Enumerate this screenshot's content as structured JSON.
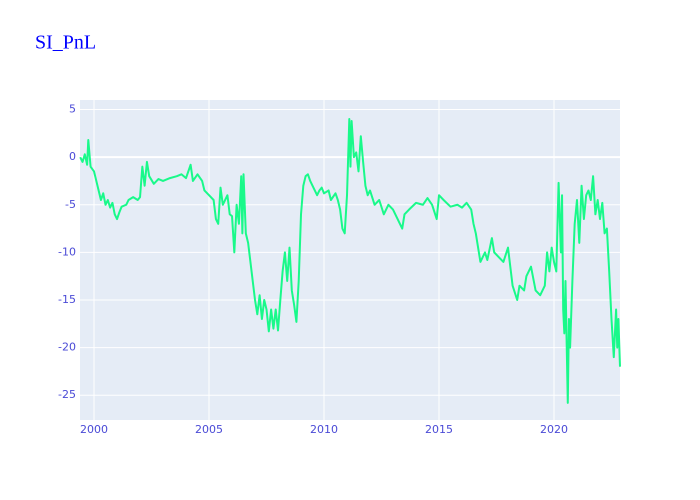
{
  "chart_data": {
    "type": "line",
    "title": "SI_PnL",
    "x": [
      1999.4,
      1999.5,
      1999.6,
      1999.7,
      1999.75,
      1999.85,
      2000.0,
      2000.1,
      2000.2,
      2000.3,
      2000.4,
      2000.5,
      2000.6,
      2000.7,
      2000.8,
      2000.9,
      2001.0,
      2001.1,
      2001.2,
      2001.4,
      2001.5,
      2001.7,
      2001.9,
      2002.0,
      2002.1,
      2002.2,
      2002.3,
      2002.4,
      2002.6,
      2002.8,
      2003.0,
      2003.3,
      2003.6,
      2003.8,
      2004.0,
      2004.2,
      2004.3,
      2004.5,
      2004.7,
      2004.8,
      2005.0,
      2005.2,
      2005.3,
      2005.4,
      2005.5,
      2005.6,
      2005.8,
      2005.9,
      2006.0,
      2006.1,
      2006.2,
      2006.3,
      2006.4,
      2006.45,
      2006.5,
      2006.6,
      2006.7,
      2006.8,
      2006.9,
      2007.0,
      2007.1,
      2007.2,
      2007.3,
      2007.4,
      2007.5,
      2007.6,
      2007.7,
      2007.8,
      2007.9,
      2008.0,
      2008.1,
      2008.2,
      2008.3,
      2008.4,
      2008.5,
      2008.6,
      2008.7,
      2008.8,
      2008.9,
      2009.0,
      2009.1,
      2009.2,
      2009.3,
      2009.4,
      2009.6,
      2009.7,
      2009.8,
      2009.9,
      2010.0,
      2010.2,
      2010.3,
      2010.5,
      2010.6,
      2010.7,
      2010.8,
      2010.9,
      2011.0,
      2011.1,
      2011.15,
      2011.2,
      2011.3,
      2011.4,
      2011.5,
      2011.6,
      2011.7,
      2011.8,
      2011.9,
      2012.0,
      2012.2,
      2012.4,
      2012.6,
      2012.8,
      2013.0,
      2013.2,
      2013.4,
      2013.5,
      2013.7,
      2014.0,
      2014.3,
      2014.5,
      2014.7,
      2014.9,
      2015.0,
      2015.2,
      2015.5,
      2015.8,
      2016.0,
      2016.2,
      2016.4,
      2016.5,
      2016.6,
      2016.8,
      2017.0,
      2017.1,
      2017.3,
      2017.4,
      2017.6,
      2017.8,
      2018.0,
      2018.2,
      2018.4,
      2018.5,
      2018.7,
      2018.8,
      2019.0,
      2019.2,
      2019.4,
      2019.6,
      2019.7,
      2019.8,
      2019.9,
      2020.0,
      2020.1,
      2020.2,
      2020.3,
      2020.35,
      2020.4,
      2020.45,
      2020.5,
      2020.6,
      2020.65,
      2020.7,
      2020.8,
      2020.9,
      2021.0,
      2021.1,
      2021.2,
      2021.3,
      2021.4,
      2021.5,
      2021.6,
      2021.7,
      2021.8,
      2021.9,
      2022.0,
      2022.1,
      2022.2,
      2022.3,
      2022.4,
      2022.5,
      2022.6,
      2022.7,
      2022.75,
      2022.8,
      2022.87
    ],
    "values": [
      0,
      -0.5,
      0.3,
      -0.8,
      1.8,
      -1,
      -1.5,
      -2.5,
      -3.5,
      -4.5,
      -3.8,
      -5,
      -4.5,
      -5.3,
      -4.8,
      -6,
      -6.5,
      -5.8,
      -5.2,
      -5,
      -4.5,
      -4.2,
      -4.5,
      -4.2,
      -1,
      -3,
      -0.5,
      -2,
      -2.8,
      -2.3,
      -2.5,
      -2.2,
      -2.0,
      -1.8,
      -2.2,
      -0.8,
      -2.5,
      -1.8,
      -2.5,
      -3.5,
      -4,
      -4.5,
      -6.5,
      -7,
      -3.2,
      -5,
      -4,
      -6,
      -6.2,
      -10,
      -5,
      -7,
      -2,
      -8,
      -1.8,
      -8,
      -9,
      -11,
      -13,
      -15,
      -16.5,
      -14.5,
      -17,
      -15,
      -16,
      -18.3,
      -16,
      -18,
      -16,
      -18.2,
      -15,
      -12,
      -10,
      -13,
      -9.5,
      -14,
      -15.5,
      -17.3,
      -13,
      -6,
      -3,
      -2,
      -1.8,
      -2.5,
      -3.5,
      -4,
      -3.5,
      -3.2,
      -3.8,
      -3.5,
      -4.5,
      -3.8,
      -4.5,
      -5.5,
      -7.5,
      -8.0,
      -4,
      4.0,
      -1,
      3.8,
      0,
      0.5,
      -1.5,
      2.2,
      -0.5,
      -3,
      -4,
      -3.5,
      -5,
      -4.5,
      -6,
      -5,
      -5.5,
      -6.5,
      -7.5,
      -6,
      -5.5,
      -4.8,
      -5,
      -4.3,
      -5,
      -6.5,
      -4,
      -4.5,
      -5.2,
      -5,
      -5.3,
      -4.8,
      -5.5,
      -7,
      -8,
      -11,
      -10,
      -10.8,
      -8.5,
      -10,
      -10.5,
      -11,
      -9.5,
      -13.5,
      -15,
      -13.5,
      -14,
      -12.5,
      -11.5,
      -14,
      -14.5,
      -13.5,
      -10,
      -12,
      -9.5,
      -11,
      -12,
      -2.7,
      -10,
      -4,
      -16,
      -18.5,
      -13,
      -25.8,
      -17,
      -20,
      -13,
      -7,
      -4.5,
      -9,
      -3,
      -6.5,
      -4,
      -3.5,
      -4.5,
      -2,
      -6,
      -4.5,
      -6.5,
      -4.8,
      -8,
      -7.5,
      -12,
      -17,
      -21,
      -16,
      -20,
      -17,
      -22
    ],
    "color": "#19f98a",
    "xlim": [
      1999.39,
      2022.87
    ],
    "ylim": [
      -27.6,
      6.0
    ],
    "xticks": [
      2000,
      2005,
      2010,
      2015,
      2020
    ],
    "yticks": [
      -25,
      -20,
      -15,
      -10,
      -5,
      0,
      5
    ],
    "grid": true
  }
}
